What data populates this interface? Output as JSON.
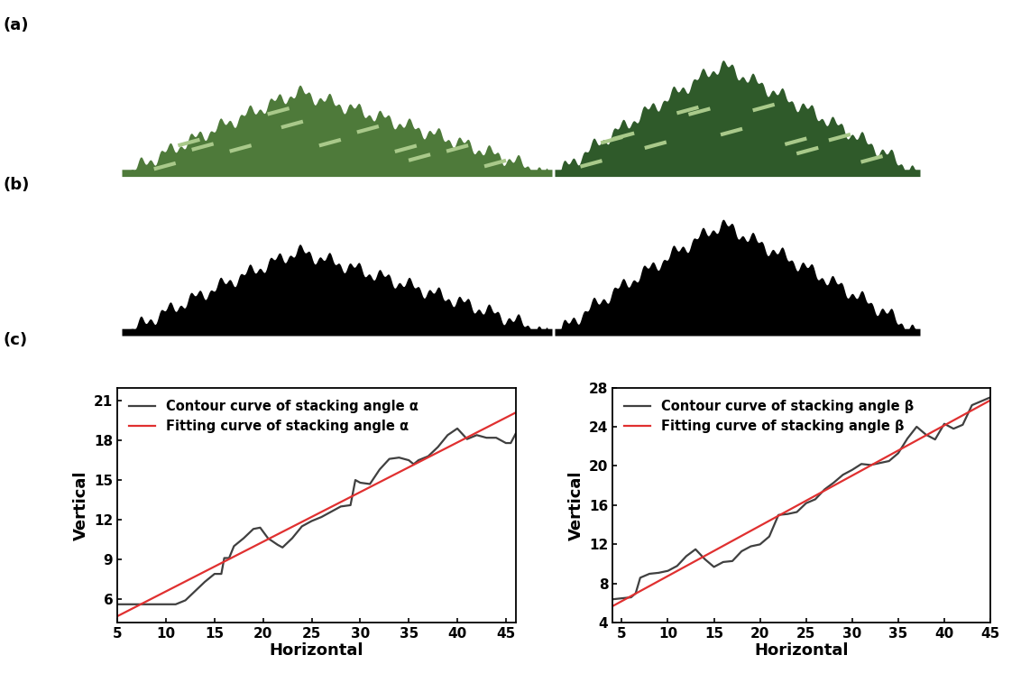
{
  "panel_labels": [
    "(a)",
    "(b)",
    "(c)"
  ],
  "chart_data": [
    {
      "type": "line",
      "x_label": "Horizontal",
      "y_label": "Vertical",
      "xlim": [
        5,
        46
      ],
      "ylim": [
        4.2,
        22
      ],
      "xticks": [
        5,
        10,
        15,
        20,
        25,
        30,
        35,
        40,
        45
      ],
      "yticks": [
        6,
        9,
        12,
        15,
        18,
        21
      ],
      "legend": "upper left",
      "series": [
        {
          "name": "Contour curve of stacking angle α",
          "color": "#404040",
          "x": [
            5,
            11,
            12,
            13,
            14,
            15,
            15.7,
            16,
            16.5,
            17,
            18,
            19,
            19.7,
            20.5,
            21.5,
            22,
            23,
            24,
            25,
            26,
            27,
            28,
            29,
            29.5,
            30,
            31,
            32,
            33,
            34,
            35,
            35.5,
            36,
            37,
            38,
            39,
            40,
            41,
            42,
            43,
            44,
            45,
            45.5,
            46
          ],
          "values": [
            5.6,
            5.6,
            5.9,
            6.6,
            7.3,
            7.9,
            7.9,
            9.1,
            9.1,
            10,
            10.6,
            11.3,
            11.4,
            10.6,
            10.1,
            9.9,
            10.6,
            11.5,
            11.9,
            12.2,
            12.6,
            13,
            13.1,
            15,
            14.8,
            14.7,
            15.8,
            16.6,
            16.7,
            16.5,
            16.2,
            16.5,
            16.8,
            17.5,
            18.4,
            18.9,
            18.1,
            18.4,
            18.2,
            18.2,
            17.8,
            17.8,
            18.5
          ]
        },
        {
          "name": "Fitting curve of stacking angle α",
          "color": "#e03030",
          "x": [
            5,
            46
          ],
          "values": [
            4.7,
            20.1
          ]
        }
      ]
    },
    {
      "type": "line",
      "x_label": "Horizontal",
      "y_label": "Vertical",
      "xlim": [
        4,
        45
      ],
      "ylim": [
        4,
        28
      ],
      "xticks": [
        5,
        10,
        15,
        20,
        25,
        30,
        35,
        40,
        45
      ],
      "yticks": [
        4,
        8,
        12,
        16,
        20,
        24,
        28
      ],
      "legend": "upper left",
      "series": [
        {
          "name": "Contour curve of stacking angle β",
          "color": "#404040",
          "x": [
            4,
            5,
            6,
            6.5,
            7,
            8,
            9,
            10,
            11,
            12,
            13,
            14,
            15,
            16,
            17,
            18,
            19,
            20,
            21,
            22,
            23,
            24,
            25,
            26,
            27,
            28,
            29,
            30,
            31,
            32,
            33,
            34,
            35,
            36,
            37,
            38,
            39,
            40,
            41,
            42,
            43,
            44,
            45
          ],
          "values": [
            6.4,
            6.5,
            6.6,
            7,
            8.6,
            9,
            9.1,
            9.3,
            9.8,
            10.8,
            11.5,
            10.5,
            9.7,
            10.2,
            10.3,
            11.3,
            11.8,
            12,
            12.8,
            15,
            15.1,
            15.3,
            16.2,
            16.6,
            17.6,
            18.3,
            19.1,
            19.6,
            20.2,
            20.1,
            20.3,
            20.5,
            21.3,
            22.8,
            24,
            23.2,
            22.7,
            24.3,
            23.8,
            24.2,
            26.2,
            26.6,
            27
          ]
        },
        {
          "name": "Fitting curve of stacking angle β",
          "color": "#e03030",
          "x": [
            4,
            45
          ],
          "values": [
            5.7,
            26.7
          ]
        }
      ]
    }
  ]
}
